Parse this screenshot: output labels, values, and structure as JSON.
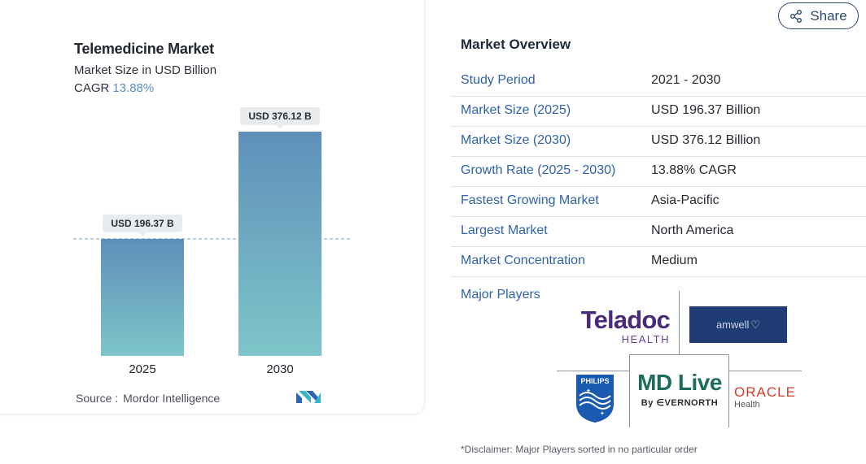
{
  "chart_data": {
    "type": "bar",
    "title": "Telemedicine Market",
    "subtitle": "Market Size in USD Billion",
    "cagr_label": "CAGR",
    "cagr_value": "13.88%",
    "categories": [
      "2025",
      "2030"
    ],
    "values": [
      196.37,
      376.12
    ],
    "data_labels": [
      "USD 196.37 B",
      "USD 376.12 B"
    ],
    "ylim": [
      0,
      376.12
    ],
    "reference_line": "dashed line at 2025 value",
    "colors": {
      "bar_top": "#5f8fba",
      "bar_bottom": "#7ec6c9",
      "ref_line": "#8fb3cf"
    }
  },
  "source": {
    "label": "Source :",
    "name": "Mordor Intelligence",
    "logo_icon": "mordor-intelligence-logo-icon"
  },
  "share": {
    "label": "Share",
    "icon": "share-icon"
  },
  "overview": {
    "title": "Market Overview",
    "rows": [
      {
        "key": "Study Period",
        "value": "2021 - 2030"
      },
      {
        "key": "Market Size (2025)",
        "value": "USD 196.37 Billion"
      },
      {
        "key": "Market Size (2030)",
        "value": "USD 376.12 Billion"
      },
      {
        "key": "Growth Rate (2025 - 2030)",
        "value": "13.88% CAGR"
      },
      {
        "key": "Fastest Growing Market",
        "value": "Asia-Pacific"
      },
      {
        "key": "Largest Market",
        "value": "North America"
      },
      {
        "key": "Market Concentration",
        "value": "Medium"
      }
    ],
    "major_players_label": "Major Players",
    "players": {
      "teladoc": {
        "name": "Teladoc",
        "sub": "HEALTH"
      },
      "amwell": {
        "name": "amwell"
      },
      "philips": {
        "name": "PHILIPS"
      },
      "mdlive": {
        "name": "MD Live",
        "sub": "By ∈VERNORTH"
      },
      "oracle": {
        "name": "ORACLE",
        "sub": "Health"
      }
    },
    "disclaimer": "*Disclaimer: Major Players sorted in no particular order"
  },
  "colors": {
    "link": "#2f62a8",
    "share_border": "#2c4a6e"
  }
}
